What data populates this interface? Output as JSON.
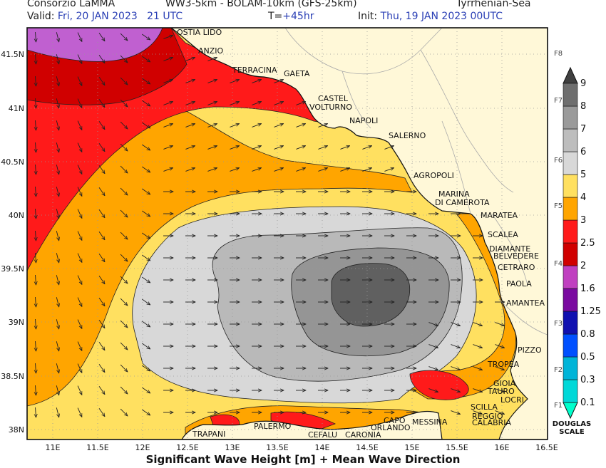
{
  "header": {
    "source": "Consorzio LaMMA",
    "models": "WW3-5km - BOLAM-10km (GFS-25km)",
    "region": "Tyrrhenian-Sea",
    "valid_label": "Valid:",
    "valid_value": "Fri, 20 JAN 2023   21 UTC",
    "lead_label": "T=",
    "lead_value": "+45hr",
    "init_label": "Init:",
    "init_value": "Thu, 19 JAN 2023 00UTC"
  },
  "footer_title": "Significant Wave Height [m] + Mean Wave Direction",
  "axes": {
    "lon_ticks": [
      "11E",
      "11.5E",
      "12E",
      "12.5E",
      "13E",
      "13.5E",
      "14E",
      "14.5E",
      "15E",
      "15.5E",
      "16E",
      "16.5E"
    ],
    "lat_ticks": [
      "41.5N",
      "41N",
      "40.5N",
      "40N",
      "39.5N",
      "39N",
      "38.5N",
      "38N"
    ]
  },
  "places": [
    {
      "name": "OSTIA LIDO"
    },
    {
      "name": "ANZIO"
    },
    {
      "name": "TERRACINA"
    },
    {
      "name": "GAETA"
    },
    {
      "name": "CASTEL"
    },
    {
      "name": "VOLTURNO"
    },
    {
      "name": "NAPOLI"
    },
    {
      "name": "SALERNO"
    },
    {
      "name": "AGROPOLI"
    },
    {
      "name": "MARINA"
    },
    {
      "name": "DI CAMEROTA"
    },
    {
      "name": "MARATEA"
    },
    {
      "name": "SCALEA"
    },
    {
      "name": "DIAMANTE"
    },
    {
      "name": "BELVEDERE"
    },
    {
      "name": "CETRARO"
    },
    {
      "name": "PAOLA"
    },
    {
      "name": "AMANTEA"
    },
    {
      "name": "PIZZO"
    },
    {
      "name": "TROPEA"
    },
    {
      "name": "GIOIA"
    },
    {
      "name": "TAURO"
    },
    {
      "name": "LOCRI"
    },
    {
      "name": "SCILLA"
    },
    {
      "name": "REGGIO"
    },
    {
      "name": "CALABRIA"
    },
    {
      "name": "MESSINA"
    },
    {
      "name": "CAPO"
    },
    {
      "name": "ORLANDO"
    },
    {
      "name": "CARONIA"
    },
    {
      "name": "CEFALU"
    },
    {
      "name": "PALERMO"
    },
    {
      "name": "TRAPANI"
    }
  ],
  "colorbar": {
    "levels": [
      "0.1",
      "0.3",
      "0.5",
      "0.8",
      "1.25",
      "1.6",
      "2",
      "2.5",
      "3",
      "4",
      "5",
      "6",
      "7",
      "8",
      "9"
    ],
    "colors": [
      "#00ffcc",
      "#00d8d8",
      "#00b4d8",
      "#0050ff",
      "#1010b0",
      "#7a0aa0",
      "#c040c0",
      "#d00000",
      "#ff1a1a",
      "#ffa500",
      "#ffe060",
      "#d8d8d8",
      "#bdbdbd",
      "#9a9a9a",
      "#6e6e6e",
      "#404040"
    ],
    "douglas": [
      "F1",
      "F2",
      "F3",
      "F4",
      "F5",
      "F6",
      "F7",
      "F8"
    ],
    "douglas_title_1": "DOUGLAS",
    "douglas_title_2": "SCALE"
  }
}
